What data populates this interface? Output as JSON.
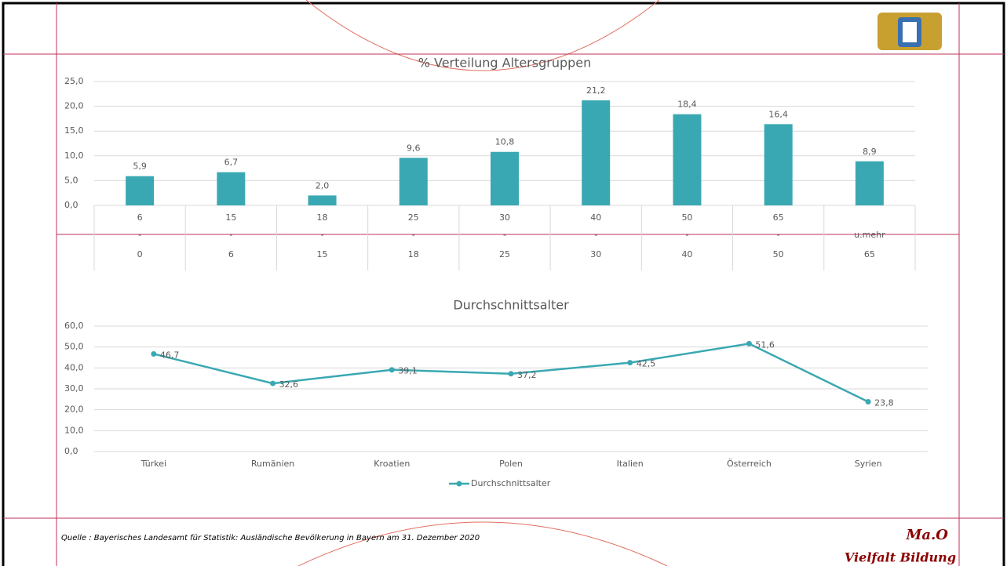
{
  "chart_data": [
    {
      "type": "bar",
      "title": "% Verteilung Altersgruppen",
      "categories": [
        [
          "6",
          "-",
          "0"
        ],
        [
          "15",
          "-",
          "6"
        ],
        [
          "18",
          "-",
          "15"
        ],
        [
          "25",
          "-",
          "18"
        ],
        [
          "30",
          "-",
          "25"
        ],
        [
          "40",
          "-",
          "30"
        ],
        [
          "50",
          "-",
          "40"
        ],
        [
          "65",
          "-",
          "50"
        ],
        [
          "u.mehr",
          "65"
        ]
      ],
      "values": [
        5.9,
        6.7,
        2.0,
        9.6,
        10.8,
        21.2,
        18.4,
        16.4,
        8.9
      ],
      "value_labels": [
        "5,9",
        "6,7",
        "2,0",
        "9,6",
        "10,8",
        "21,2",
        "18,4",
        "16,4",
        "8,9"
      ],
      "color": "#3aa8b2",
      "ylim": [
        0,
        25
      ],
      "yticks": [
        {
          "value": 0,
          "label": "0,0"
        },
        {
          "value": 5,
          "label": "5,0"
        },
        {
          "value": 10,
          "label": "10,0"
        },
        {
          "value": 15,
          "label": "15,0"
        },
        {
          "value": 20,
          "label": "20,0"
        },
        {
          "value": 25,
          "label": "25,0"
        }
      ],
      "grid": true
    },
    {
      "type": "line",
      "title": "Durchschnittsalter",
      "categories": [
        "Türkei",
        "Rumänien",
        "Kroatien",
        "Polen",
        "Italien",
        "Österreich",
        "Syrien"
      ],
      "series": [
        {
          "name": "Durchschnittsalter",
          "color": "#3aa8b2",
          "values": [
            46.7,
            32.6,
            39.1,
            37.2,
            42.5,
            51.6,
            23.8
          ],
          "value_labels": [
            "46,7",
            "32,6",
            "39,1",
            "37,2",
            "42,5",
            "51,6",
            "23,8"
          ]
        }
      ],
      "ylim": [
        0,
        60
      ],
      "yticks": [
        {
          "value": 0,
          "label": "0,0"
        },
        {
          "value": 10,
          "label": "10,0"
        },
        {
          "value": 20,
          "label": "20,0"
        },
        {
          "value": 30,
          "label": "30,0"
        },
        {
          "value": 40,
          "label": "40,0"
        },
        {
          "value": 50,
          "label": "50,0"
        },
        {
          "value": 60,
          "label": "60,0"
        }
      ],
      "grid": true,
      "legend": "bottom"
    }
  ],
  "footer": {
    "source": "Quelle : Bayerisches Landesamt für Statistik: Ausländische Bevölkerung in Bayern am 31. Dezember 2020",
    "brand": "Ma.O",
    "slogan": "Vielfalt Bildung"
  }
}
